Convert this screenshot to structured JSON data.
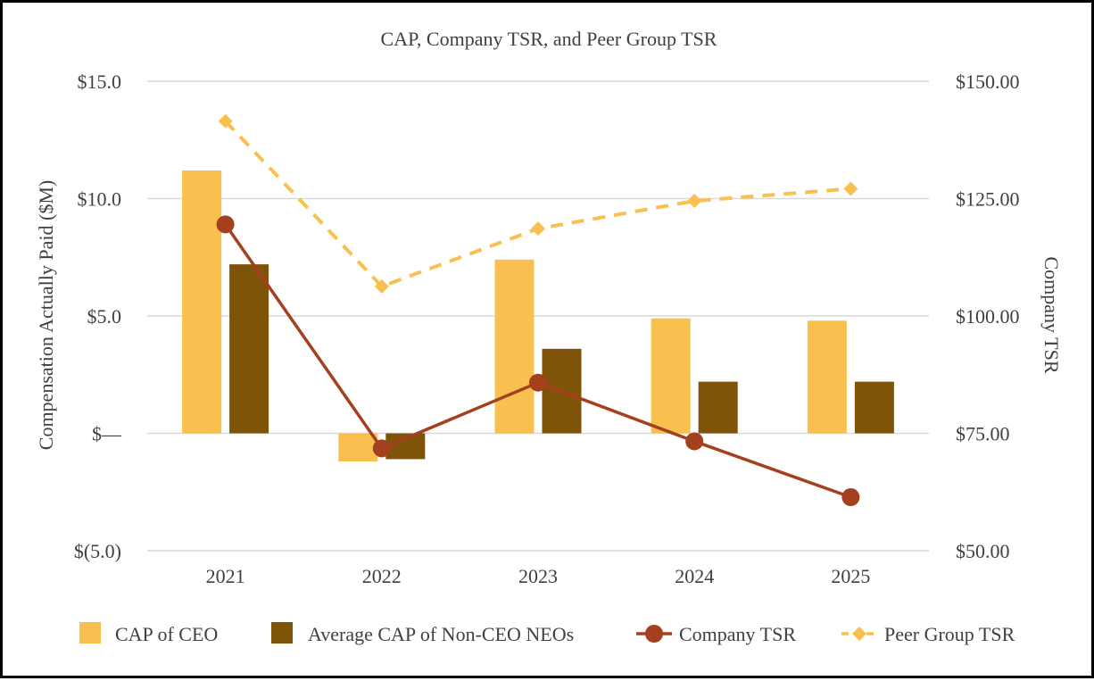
{
  "chart_data": {
    "type": "bar",
    "title": "CAP, Company TSR, and Peer Group TSR",
    "categories": [
      "2021",
      "2022",
      "2023",
      "2024",
      "2025"
    ],
    "ylabel": "Compensation Actually Paid ($M)",
    "y2label": "Company TSR",
    "ylim": [
      -5,
      15
    ],
    "y2lim": [
      50,
      150
    ],
    "y_ticks": [
      {
        "value": 15,
        "label": "$15.0"
      },
      {
        "value": 10,
        "label": "$10.0"
      },
      {
        "value": 5,
        "label": "$5.0"
      },
      {
        "value": 0,
        "label": "$—"
      },
      {
        "value": -5,
        "label": "$(5.0)"
      }
    ],
    "y2_ticks": [
      {
        "value": 150,
        "label": "$150.00"
      },
      {
        "value": 125,
        "label": "$125.00"
      },
      {
        "value": 100,
        "label": "$100.00"
      },
      {
        "value": 75,
        "label": "$75.00"
      },
      {
        "value": 50,
        "label": "$50.00"
      }
    ],
    "grid": true,
    "legend_position": "bottom",
    "series": [
      {
        "name": "CAP of CEO",
        "kind": "bar",
        "axis": "left",
        "color": "#F9C04F",
        "values": [
          11.2,
          -1.2,
          7.4,
          4.9,
          4.8
        ]
      },
      {
        "name": "Average CAP of Non-CEO NEOs",
        "kind": "bar",
        "axis": "left",
        "color": "#7F5308",
        "values": [
          7.2,
          -1.1,
          3.6,
          2.2,
          2.2
        ]
      },
      {
        "name": "Company TSR",
        "kind": "line",
        "axis": "right",
        "color": "#A5401E",
        "marker": "circle",
        "dashed": false,
        "values": [
          119.5,
          71.8,
          85.8,
          73.3,
          61.4
        ]
      },
      {
        "name": "Peer Group TSR",
        "kind": "line",
        "axis": "right",
        "color": "#F9C04F",
        "marker": "diamond",
        "dashed": true,
        "values": [
          141.5,
          106.3,
          118.6,
          124.5,
          127.1
        ]
      }
    ]
  }
}
